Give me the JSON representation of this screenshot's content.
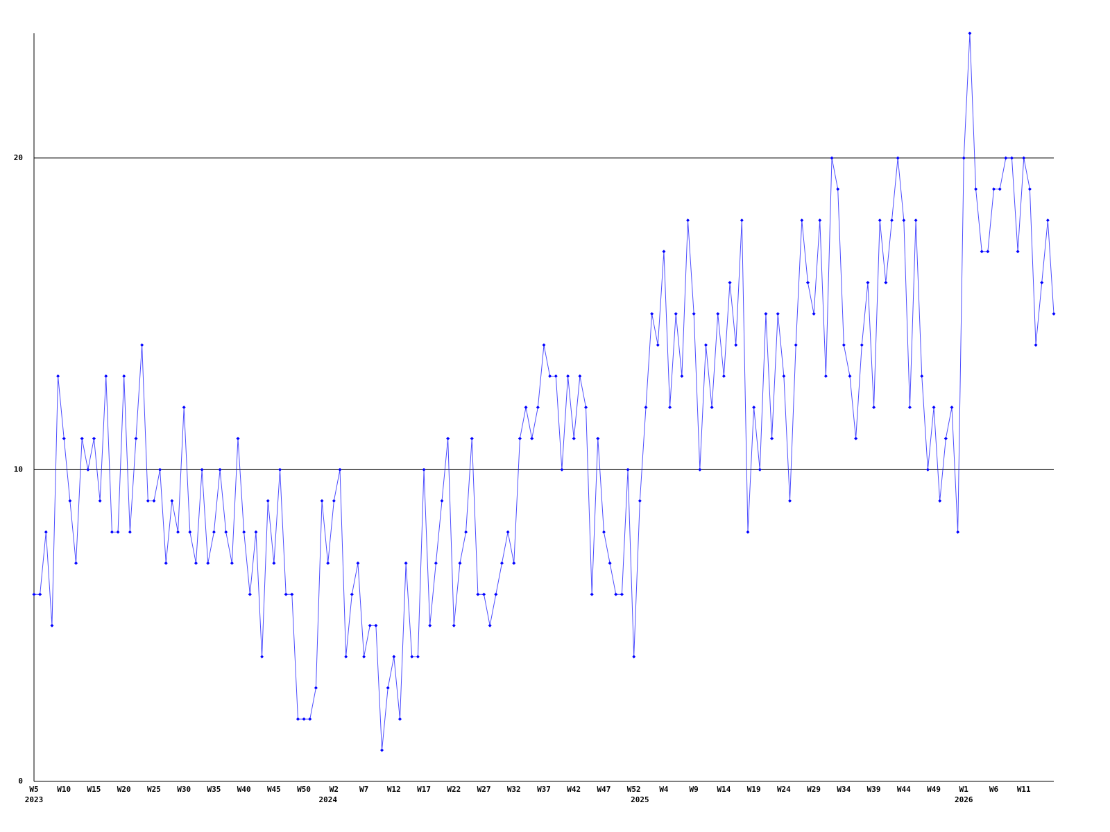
{
  "chart_data": {
    "type": "line",
    "color": "#0000ff",
    "categories": [
      "W5",
      null,
      null,
      null,
      null,
      "W10",
      null,
      null,
      null,
      null,
      "W15",
      null,
      null,
      null,
      null,
      "W20",
      null,
      null,
      null,
      null,
      "W25",
      null,
      null,
      null,
      null,
      "W30",
      null,
      null,
      null,
      null,
      "W35",
      null,
      null,
      null,
      null,
      "W40",
      null,
      null,
      null,
      null,
      "W45",
      null,
      null,
      null,
      null,
      "W50",
      null,
      null,
      null,
      null,
      "W2",
      null,
      null,
      null,
      null,
      "W7",
      null,
      null,
      null,
      null,
      "W12",
      null,
      null,
      null,
      null,
      "W17",
      null,
      null,
      null,
      null,
      "W22",
      null,
      null,
      null,
      null,
      "W27",
      null,
      null,
      null,
      null,
      "W32",
      null,
      null,
      null,
      null,
      "W37",
      null,
      null,
      null,
      null,
      "W42",
      null,
      null,
      null,
      null,
      "W47",
      null,
      null,
      null,
      null,
      "W52",
      null,
      null,
      null,
      null,
      "W4",
      null,
      null,
      null,
      null,
      "W9",
      null,
      null,
      null,
      null,
      "W14",
      null,
      null,
      null,
      null,
      "W19",
      null,
      null,
      null,
      null,
      "W24",
      null,
      null,
      null,
      null,
      "W29",
      null,
      null,
      null,
      null,
      "W34",
      null,
      null,
      null,
      null,
      "W39",
      null,
      null,
      null,
      null,
      "W44",
      null,
      null,
      null,
      null,
      "W49",
      null,
      null,
      null,
      null,
      "W1",
      null,
      null,
      null,
      null,
      "W6",
      null,
      null,
      null,
      null,
      "W11",
      null,
      null,
      null,
      null,
      null
    ],
    "year_labels": [
      "2023",
      null,
      null,
      null,
      null,
      null,
      null,
      null,
      null,
      null,
      null,
      null,
      null,
      null,
      null,
      null,
      null,
      null,
      null,
      null,
      null,
      null,
      null,
      null,
      null,
      null,
      null,
      null,
      null,
      null,
      null,
      null,
      null,
      null,
      null,
      null,
      null,
      null,
      null,
      null,
      null,
      null,
      null,
      null,
      null,
      null,
      null,
      null,
      null,
      "2024",
      null,
      null,
      null,
      null,
      null,
      null,
      null,
      null,
      null,
      null,
      null,
      null,
      null,
      null,
      null,
      null,
      null,
      null,
      null,
      null,
      null,
      null,
      null,
      null,
      null,
      null,
      null,
      null,
      null,
      null,
      null,
      null,
      null,
      null,
      null,
      null,
      null,
      null,
      null,
      null,
      null,
      null,
      null,
      null,
      null,
      null,
      null,
      null,
      null,
      null,
      null,
      "2025",
      null,
      null,
      null,
      null,
      null,
      null,
      null,
      null,
      null,
      null,
      null,
      null,
      null,
      null,
      null,
      null,
      null,
      null,
      null,
      null,
      null,
      null,
      null,
      null,
      null,
      null,
      null,
      null,
      null,
      null,
      null,
      null,
      null,
      null,
      null,
      null,
      null,
      null,
      null,
      null,
      null,
      null,
      null,
      null,
      null,
      null,
      null,
      null,
      null,
      null,
      null,
      null,
      null,
      "2026",
      null,
      null,
      null,
      null,
      null,
      null,
      null,
      null,
      null,
      null,
      null,
      null,
      null,
      null,
      null
    ],
    "values": [
      6,
      6,
      8,
      5,
      13,
      11,
      9,
      7,
      11,
      10,
      11,
      9,
      13,
      8,
      8,
      13,
      8,
      11,
      14,
      9,
      9,
      10,
      7,
      9,
      8,
      12,
      8,
      7,
      10,
      7,
      8,
      10,
      8,
      7,
      11,
      8,
      6,
      8,
      4,
      9,
      7,
      10,
      6,
      6,
      2,
      2,
      2,
      3,
      9,
      7,
      9,
      10,
      4,
      6,
      7,
      4,
      5,
      5,
      1,
      3,
      4,
      2,
      7,
      4,
      4,
      10,
      5,
      7,
      9,
      11,
      5,
      7,
      8,
      11,
      6,
      6,
      5,
      6,
      7,
      8,
      7,
      11,
      12,
      11,
      12,
      14,
      13,
      13,
      10,
      13,
      11,
      13,
      12,
      6,
      11,
      8,
      7,
      6,
      6,
      10,
      4,
      9,
      12,
      15,
      14,
      17,
      12,
      15,
      13,
      18,
      15,
      10,
      14,
      12,
      15,
      13,
      16,
      14,
      18,
      8,
      12,
      10,
      15,
      11,
      15,
      13,
      9,
      14,
      18,
      16,
      15,
      18,
      13,
      20,
      19,
      14,
      13,
      11,
      14,
      16,
      12,
      18,
      16,
      18,
      20,
      18,
      12,
      18,
      13,
      10,
      12,
      9,
      11,
      12,
      8,
      20,
      24,
      19,
      17,
      17,
      19,
      19,
      20,
      20,
      17,
      20,
      19,
      14,
      16,
      18,
      15
    ],
    "ylim": [
      0,
      24
    ],
    "yticks": [
      0,
      10,
      20
    ],
    "grid": true
  }
}
